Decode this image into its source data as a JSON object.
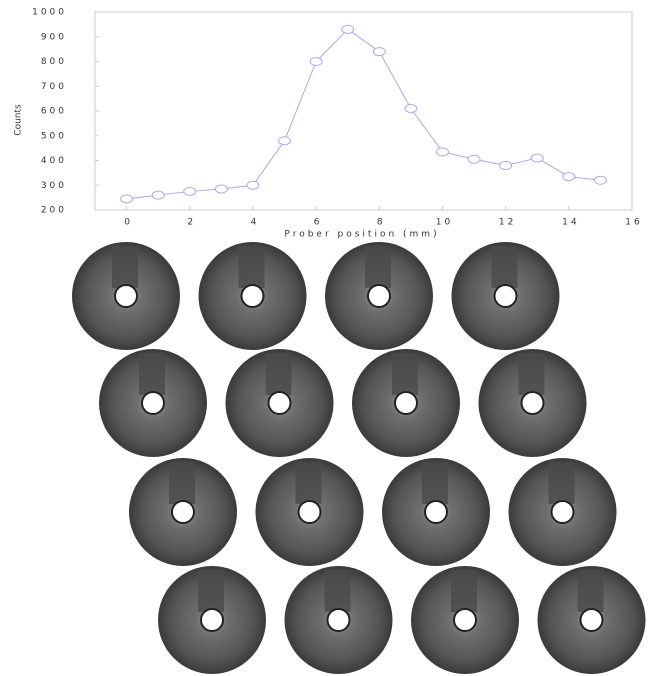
{
  "chart_data": {
    "type": "line",
    "x_label": "Prober position (mm)",
    "y_label": "Counts",
    "x": [
      0,
      1,
      2,
      3,
      4,
      5,
      6,
      7,
      8,
      9,
      10,
      11,
      12,
      13,
      14,
      15
    ],
    "series": [
      {
        "color": "#a9a9ee",
        "values": [
          245,
          260,
          275,
          285,
          300,
          480,
          800,
          930,
          840,
          610,
          435,
          405,
          380,
          410,
          335,
          320
        ]
      }
    ],
    "xlim": [
      -1,
      16
    ],
    "xticks": [
      0,
      2,
      4,
      6,
      8,
      10,
      12,
      14,
      16
    ],
    "ylim": [
      200,
      1000
    ],
    "yticks": [
      200,
      300,
      400,
      500,
      600,
      700,
      800,
      900,
      1000
    ],
    "grid": false
  }
}
